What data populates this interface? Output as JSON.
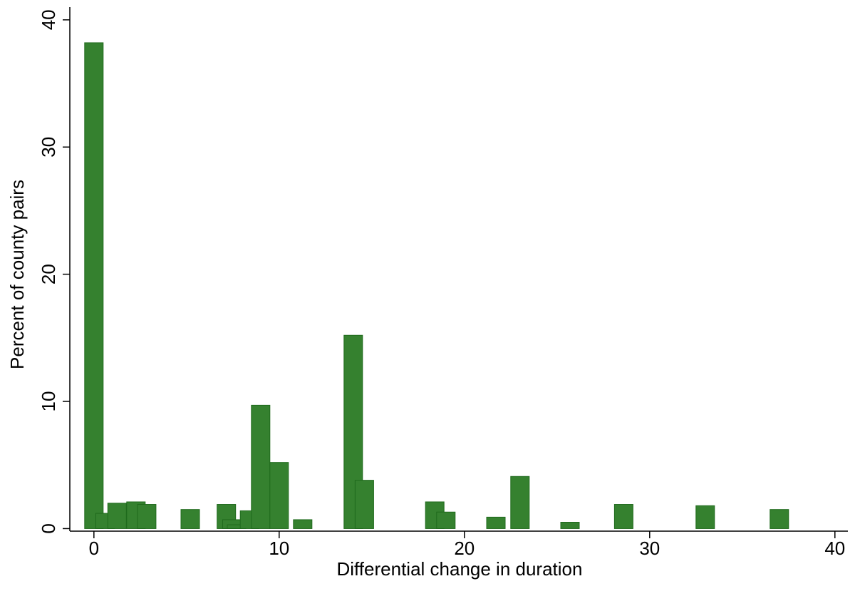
{
  "chart_data": {
    "type": "bar",
    "x_label": "Differential change in duration",
    "y_label": "Percent of county pairs",
    "x": [
      0,
      0.6,
      1.25,
      2.27,
      2.85,
      5.2,
      7.15,
      7.45,
      7.7,
      8.4,
      9.0,
      10.0,
      11.27,
      14.0,
      14.6,
      18.4,
      19.0,
      21.7,
      23.0,
      25.7,
      28.6,
      33.0,
      37.0
    ],
    "values": [
      38.2,
      1.2,
      2.0,
      2.1,
      1.9,
      1.5,
      1.9,
      0.7,
      0.3,
      1.4,
      9.7,
      5.2,
      0.7,
      15.2,
      3.8,
      2.1,
      1.3,
      0.9,
      4.1,
      0.5,
      1.9,
      1.8,
      1.5
    ],
    "color": "#35812f",
    "xlim": [
      -1.3,
      40.7
    ],
    "xticks": [
      0,
      10,
      20,
      30,
      40
    ],
    "ylim": [
      -0.2,
      41
    ],
    "yticks": [
      0,
      10,
      20,
      30,
      40
    ],
    "grid": false
  }
}
